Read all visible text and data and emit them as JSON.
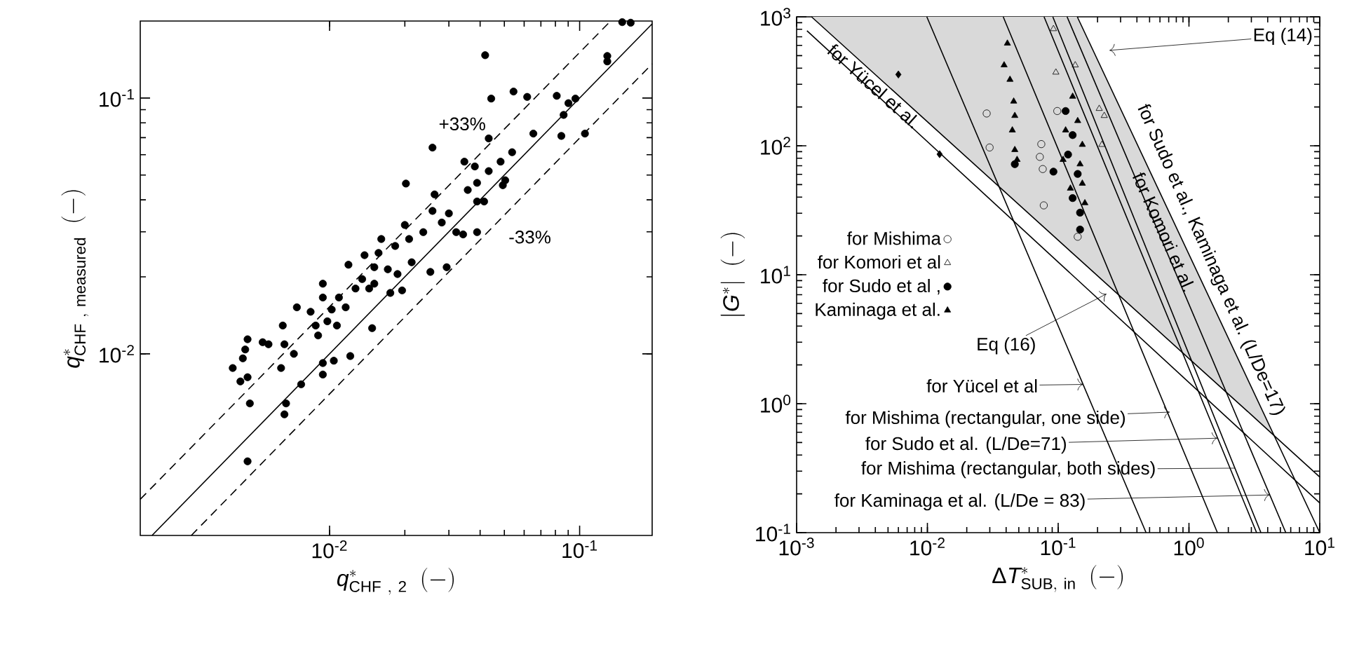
{
  "chart_data": [
    {
      "type": "scatter",
      "xlabel": "q^{*}_{\\mathrm{CHF\\ ,\\ 2}}\\ \\ (-)",
      "ylabel": "q^{*}_{\\mathrm{CHF\\ ,\\ measured}}\\ \\ (-)",
      "log": "xy",
      "xlim": [
        0.00175,
        0.195
      ],
      "ylim": [
        0.00195,
        0.2
      ],
      "xticks": [
        {
          "value": 0.01,
          "label": "10$^{-2}$"
        },
        {
          "value": 0.1,
          "label": "10$^{-1}$"
        }
      ],
      "yticks": [
        {
          "value": 0.01,
          "label": "10$^{-2}$"
        },
        {
          "value": 0.1,
          "label": "10$^{-1}$"
        }
      ],
      "series": [
        {
          "color": "#000000",
          "marker": "circle",
          "x": [
            0.0419,
            0.0544,
            0.0617,
            0.0443,
            0.081,
            0.0902,
            0.0258,
            0.0202,
            0.0346,
            0.0433,
            0.0653,
            0.0845,
            0.105,
            0.0537,
            0.0483,
            0.0433,
            0.0389,
            0.0357,
            0.0415,
            0.0493,
            0.0263,
            0.03,
            0.0258,
            0.0281,
            0.0321,
            0.0389,
            0.0237,
            0.02,
            0.0208,
            0.0183,
            0.0213,
            0.0161,
            0.0138,
            0.0151,
            0.0171,
            0.0187,
            0.0253,
            0.0294,
            0.0151,
            0.0127,
            0.0119,
            0.0109,
            0.0094,
            0.0094,
            0.0102,
            0.0116,
            0.0084,
            0.0074,
            0.0088,
            0.0098,
            0.0107,
            0.009,
            0.0065,
            0.0066,
            0.0072,
            0.0057,
            0.0054,
            0.0047,
            0.0046,
            0.0045,
            0.0041,
            0.0044,
            0.0047,
            0.0064,
            0.0077,
            0.0048,
            0.0067,
            0.0066,
            0.0047,
            0.0094,
            0.0104,
            0.0094,
            0.0121,
            0.0148,
            0.0175,
            0.0195,
            0.0504,
            0.0389,
            0.0863,
            0.0962,
            0.0381,
            0.0342,
            0.0157,
            0.0135,
            0.0144,
            0.148,
            0.16,
            0.129,
            0.129
          ],
          "values": [
            0.147,
            0.106,
            0.101,
            0.0995,
            0.102,
            0.0955,
            0.064,
            0.0463,
            0.0564,
            0.0695,
            0.0726,
            0.0711,
            0.0726,
            0.0614,
            0.0564,
            0.0518,
            0.0466,
            0.0437,
            0.0394,
            0.0456,
            0.042,
            0.0354,
            0.0362,
            0.0326,
            0.0299,
            0.0299,
            0.0299,
            0.0319,
            0.0281,
            0.0264,
            0.0228,
            0.0281,
            0.0243,
            0.0218,
            0.0214,
            0.0205,
            0.0209,
            0.0218,
            0.0188,
            0.018,
            0.0223,
            0.0166,
            0.0188,
            0.0166,
            0.0149,
            0.0152,
            0.0146,
            0.0152,
            0.0129,
            0.0134,
            0.0129,
            0.0118,
            0.0129,
            0.0109,
            0.01,
            0.0109,
            0.0111,
            0.0114,
            0.0104,
            0.0096,
            0.0088,
            0.0078,
            0.0081,
            0.0088,
            0.0076,
            0.0064,
            0.0064,
            0.0058,
            0.0038,
            0.0092,
            0.0094,
            0.0083,
            0.0098,
            0.0126,
            0.0173,
            0.0177,
            0.0477,
            0.0394,
            0.0859,
            0.0995,
            0.054,
            0.0293,
            0.0248,
            0.0196,
            0.018,
            0.198,
            0.197,
            0.146,
            0.139
          ]
        },
        {
          "type": "line",
          "color": "#000000",
          "line_style": "solid",
          "x": [
            0.00195,
            0.195
          ],
          "values": [
            0.00195,
            0.195
          ]
        },
        {
          "type": "line",
          "color": "#000000",
          "line_style": "dashed",
          "x": [
            0.00175,
            0.133
          ],
          "values": [
            0.0027,
            0.2
          ]
        },
        {
          "type": "line",
          "color": "#000000",
          "line_style": "dashed",
          "x": [
            0.0028,
            0.195
          ],
          "values": [
            0.00195,
            0.136
          ]
        }
      ],
      "annotations": [
        "+33%",
        "-33%"
      ]
    },
    {
      "type": "scatter",
      "xlabel": "\\Delta T^{*}_{\\mathrm{SUB,\\ in}}\\ \\ (-)",
      "ylabel": "|G^{*}|\\ \\ (-)",
      "log": "xy",
      "xlim": [
        0.001,
        10
      ],
      "ylim": [
        0.1,
        1000
      ],
      "xticks": [
        {
          "value": 0.001,
          "label": "10$^{-3}$"
        },
        {
          "value": 0.01,
          "label": "10$^{-2}$"
        },
        {
          "value": 0.1,
          "label": "10$^{-1}$"
        },
        {
          "value": 1,
          "label": "10$^{0}$"
        },
        {
          "value": 10,
          "label": "10$^{1}$"
        }
      ],
      "yticks": [
        {
          "value": 0.1,
          "label": "10$^{-1}$"
        },
        {
          "value": 1,
          "label": "10$^{0}$"
        },
        {
          "value": 10,
          "label": "10$^{1}$"
        },
        {
          "value": 100,
          "label": "10$^{2}$"
        },
        {
          "value": 1000,
          "label": "10$^{3}$"
        }
      ],
      "legend": "left",
      "series": [
        {
          "type": "line",
          "color": "#000000",
          "line_style": "solid",
          "x": [
            0.0013,
            0.14,
            1,
            3,
            4.44,
            10
          ],
          "values": [
            1000,
            13.6,
            2.24,
            0.82,
            0.57,
            0.27
          ],
          "lower": [
            1000,
            13.6,
            2.24,
            0.82,
            0.57,
            null
          ],
          "upper": [
            1000,
            1000,
            14.3,
            1.33,
            0.57,
            null
          ]
        },
        {
          "type": "line",
          "color": "#000000",
          "line_style": "solid",
          "x": [
            0.0012,
            10
          ],
          "values": [
            780,
            0.17
          ]
        },
        {
          "type": "line",
          "color": "#000000",
          "line_style": "solid",
          "x": [
            0.0099,
            0.47
          ],
          "values": [
            1000,
            0.1
          ]
        },
        {
          "type": "line",
          "color": "#000000",
          "line_style": "solid",
          "x": [
            0.038,
            1.65
          ],
          "values": [
            1000,
            0.1
          ]
        },
        {
          "type": "line",
          "color": "#000000",
          "line_style": "solid",
          "x": [
            0.078,
            3.29
          ],
          "values": [
            1000,
            0.1
          ]
        },
        {
          "type": "line",
          "color": "#000000",
          "line_style": "solid",
          "x": [
            0.091,
            3.55
          ],
          "values": [
            1000,
            0.1
          ]
        },
        {
          "type": "line",
          "color": "#000000",
          "line_style": "solid",
          "x": [
            0.117,
            5.5
          ],
          "values": [
            1000,
            0.1
          ]
        },
        {
          "type": "line",
          "color": "#000000",
          "line_style": "solid",
          "x": [
            0.14,
            10
          ],
          "values": [
            1000,
            0.1
          ]
        },
        {
          "name": "for Mishima",
          "color": "#000000",
          "marker": "circle",
          "x": [
            0.0284,
            0.0299,
            0.0743,
            0.0724,
            0.0762,
            0.0776,
            0.141,
            0.0984
          ],
          "values": [
            178,
            97,
            103,
            82,
            66,
            34.5,
            19.7,
            186
          ]
        },
        {
          "name": "for Komori et al",
          "color": "#000000",
          "marker": "triangle",
          "x": [
            0.096,
            0.092,
            0.135,
            0.206,
            0.225,
            0.216
          ],
          "values": [
            371,
            806,
            422,
            194,
            171,
            102
          ]
        },
        {
          "name": "for Sudo et al ,",
          "color": "#000000",
          "marker": "circle",
          "x": [
            0.114,
            0.129,
            0.119,
            0.141,
            0.129,
            0.147,
            0.147,
            0.0466,
            0.092
          ],
          "values": [
            186,
            121,
            85.5,
            60.5,
            39.3,
            30.3,
            22.4,
            72,
            63
          ]
        },
        {
          "name": "Kaminaga et al.",
          "color": "#000000",
          "marker": "triangle",
          "x": [
            0.0409,
            0.0386,
            0.0428,
            0.0457,
            0.0466,
            0.0446,
            0.0466,
            0.0485,
            0.129,
            0.141,
            0.153,
            0.147,
            0.153,
            0.16,
            0.124,
            0.109,
            0.114
          ],
          "values": [
            622,
            422,
            326,
            221,
            171,
            132,
            93,
            78,
            241,
            156,
            102,
            72,
            51,
            36,
            46.7,
            78,
            132
          ]
        },
        {
          "color": "#000000",
          "marker": "diamond",
          "x": [
            0.0124,
            0.006
          ],
          "values": [
            86,
            357
          ]
        }
      ],
      "annotations": [
        "Eq (14)",
        {
          "text": "for Yücel et al.",
          "x": 0.0039,
          "y": 290
        },
        "for Sudo et al., Kaminaga et al. (L/De=17)",
        {
          "text": "for Komori et al.",
          "x": 0.645,
          "y": 21.4
        },
        {
          "text": "Eq (16)",
          "x": 0.234,
          "y": 7.1
        },
        {
          "text": "for Yücel et al",
          "x": 0.155,
          "y": 1.41
        },
        {
          "text": "for Mishima (rectangular, one side)",
          "x": 0.713,
          "y": 0.86
        },
        {
          "text": "for Sudo et al. (L/De=71)",
          "x": 1.65,
          "y": 0.54
        },
        "for Mishima (rectangular, both sides)",
        {
          "text": "for Kaminaga et al. (L/De = 83)",
          "x": 4.15,
          "y": 0.196
        }
      ]
    }
  ]
}
